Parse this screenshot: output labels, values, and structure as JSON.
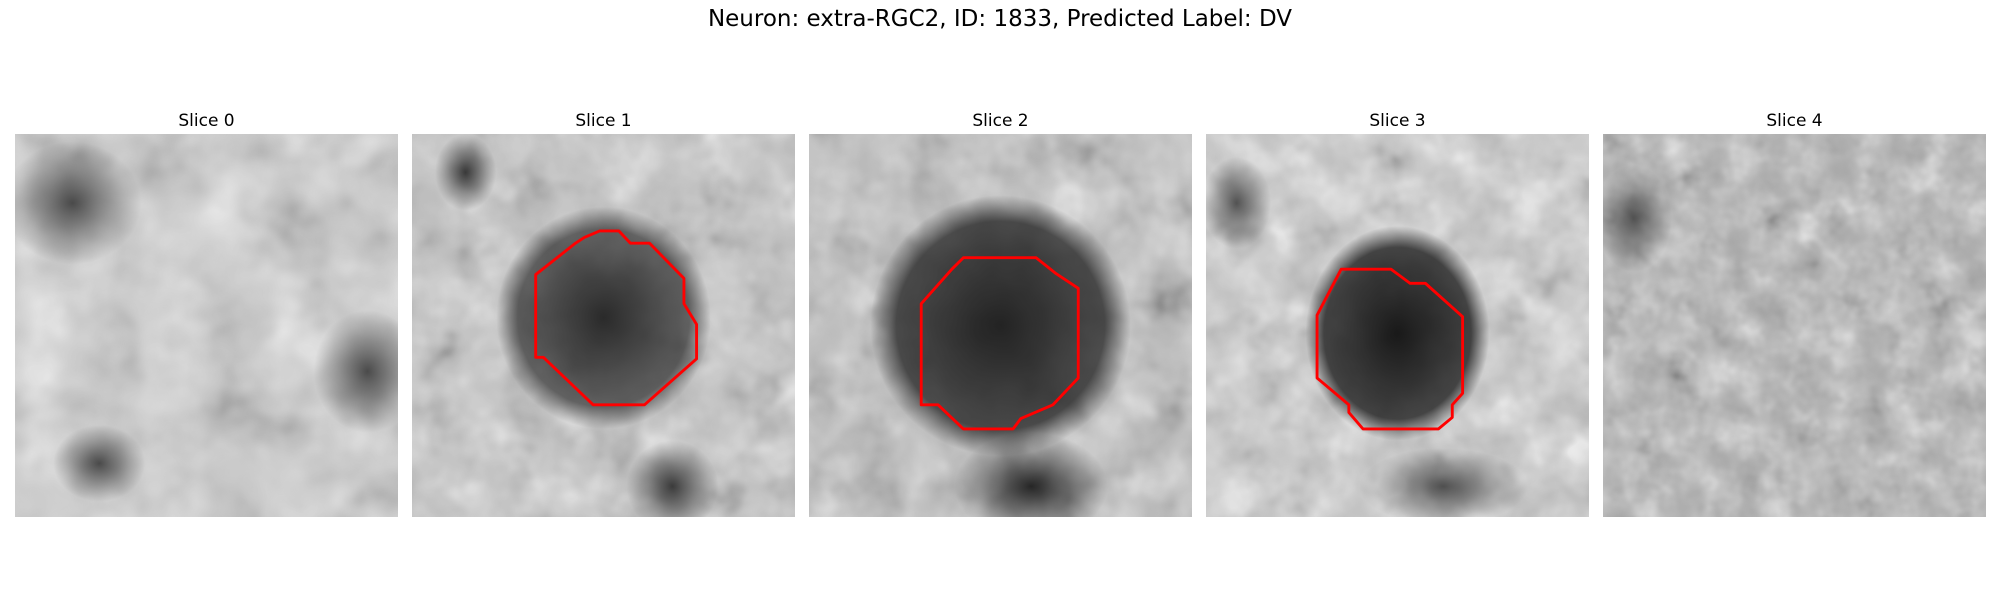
{
  "figure": {
    "title": "Neuron: extra-RGC2, ID: 1833, Predicted Label: DV"
  },
  "slices": [
    {
      "label": "Slice 0",
      "has_contour": false
    },
    {
      "label": "Slice 1",
      "has_contour": true
    },
    {
      "label": "Slice 2",
      "has_contour": true
    },
    {
      "label": "Slice 3",
      "has_contour": true
    },
    {
      "label": "Slice 4",
      "has_contour": false
    }
  ],
  "colors": {
    "contour": "#ff0000",
    "background": "#ffffff"
  }
}
